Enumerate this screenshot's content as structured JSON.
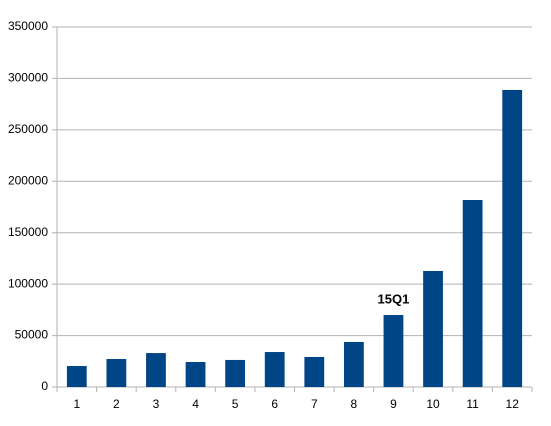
{
  "chart_data": {
    "type": "bar",
    "categories": [
      "1",
      "2",
      "3",
      "4",
      "5",
      "6",
      "7",
      "8",
      "9",
      "10",
      "11",
      "12"
    ],
    "values": [
      20400,
      27200,
      33000,
      24300,
      26300,
      34000,
      29200,
      43800,
      70000,
      112800,
      181800,
      288800
    ],
    "color": "#004586",
    "ylim": [
      0,
      350000
    ],
    "yticks": [
      0,
      50000,
      100000,
      150000,
      200000,
      250000,
      300000,
      350000
    ],
    "grid": true,
    "annotations": [
      {
        "text": "15Q1",
        "x": "9"
      }
    ]
  }
}
